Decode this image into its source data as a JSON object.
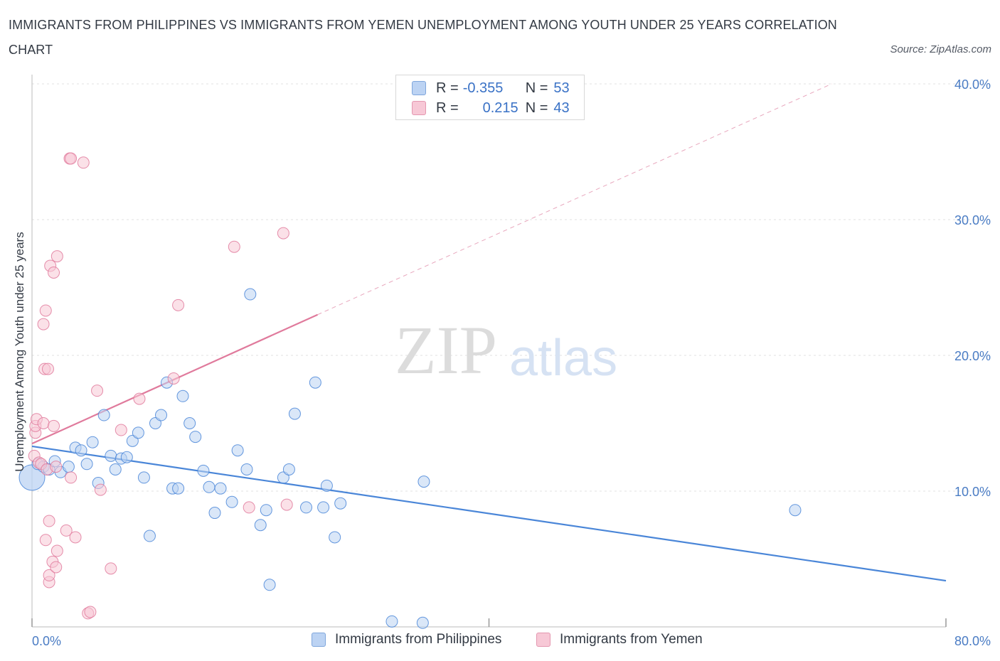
{
  "header": {
    "title": "IMMIGRANTS FROM PHILIPPINES VS IMMIGRANTS FROM YEMEN UNEMPLOYMENT AMONG YOUTH UNDER 25 YEARS CORRELATION CHART",
    "source": "Source: ZipAtlas.com",
    "watermark_zip": "ZIP",
    "watermark_atlas": "atlas"
  },
  "legend": {
    "r_label": "R =",
    "n_label": "N =",
    "series": [
      {
        "name": "Immigrants from Philippines",
        "r": "-0.355",
        "n": "53",
        "color": "#4a86d8"
      },
      {
        "name": "Immigrants from Yemen",
        "r": "0.215",
        "n": "43",
        "color": "#e07a9c"
      }
    ]
  },
  "chart_data": {
    "type": "scatter",
    "title": "IMMIGRANTS FROM PHILIPPINES VS IMMIGRANTS FROM YEMEN UNEMPLOYMENT AMONG YOUTH UNDER 25 YEARS CORRELATION CHART",
    "xlabel": "",
    "ylabel": "Unemployment Among Youth under 25 years",
    "xlim": [
      0,
      80
    ],
    "ylim": [
      0,
      40
    ],
    "x_tick_labels": [
      "0.0%",
      "80.0%"
    ],
    "y_ticks": [
      10,
      20,
      30,
      40
    ],
    "y_tick_labels": [
      "10.0%",
      "20.0%",
      "30.0%",
      "40.0%"
    ],
    "grid": true,
    "legend_position": "top-center",
    "series": [
      {
        "name": "Immigrants from Philippines",
        "color": "#4a86d8",
        "fill": "#bcd3f3",
        "points": [
          [
            0.0,
            11.0
          ],
          [
            0.5,
            12.0
          ],
          [
            1.0,
            11.8
          ],
          [
            1.5,
            11.6
          ],
          [
            2.0,
            12.2
          ],
          [
            2.5,
            11.4
          ],
          [
            3.2,
            11.8
          ],
          [
            3.8,
            13.2
          ],
          [
            4.3,
            13.0
          ],
          [
            4.8,
            12.0
          ],
          [
            5.3,
            13.6
          ],
          [
            5.8,
            10.6
          ],
          [
            6.3,
            15.6
          ],
          [
            6.9,
            12.6
          ],
          [
            7.3,
            11.6
          ],
          [
            7.8,
            12.4
          ],
          [
            8.3,
            12.5
          ],
          [
            8.8,
            13.7
          ],
          [
            9.3,
            14.3
          ],
          [
            9.8,
            11.0
          ],
          [
            10.3,
            6.7
          ],
          [
            10.8,
            15.0
          ],
          [
            11.3,
            15.6
          ],
          [
            11.8,
            18.0
          ],
          [
            12.3,
            10.2
          ],
          [
            12.8,
            10.2
          ],
          [
            13.2,
            17.0
          ],
          [
            13.8,
            15.0
          ],
          [
            14.3,
            14.0
          ],
          [
            15.0,
            11.5
          ],
          [
            15.5,
            10.3
          ],
          [
            16.0,
            8.4
          ],
          [
            16.5,
            10.2
          ],
          [
            17.5,
            9.2
          ],
          [
            18.0,
            13.0
          ],
          [
            18.8,
            11.6
          ],
          [
            19.1,
            24.5
          ],
          [
            20.0,
            7.5
          ],
          [
            20.5,
            8.6
          ],
          [
            20.8,
            3.1
          ],
          [
            22.0,
            11.0
          ],
          [
            22.5,
            11.6
          ],
          [
            23.0,
            15.7
          ],
          [
            24.0,
            8.8
          ],
          [
            24.8,
            18.0
          ],
          [
            25.5,
            8.8
          ],
          [
            25.8,
            10.4
          ],
          [
            26.5,
            6.6
          ],
          [
            27.0,
            9.1
          ],
          [
            31.5,
            0.4
          ],
          [
            34.2,
            0.3
          ],
          [
            34.3,
            10.7
          ],
          [
            66.8,
            8.6
          ]
        ],
        "trend": {
          "x0": 0,
          "y0": 13.3,
          "x1": 80,
          "y1": 3.4
        }
      },
      {
        "name": "Immigrants from Yemen",
        "color": "#e07a9c",
        "fill": "#f7c8d6",
        "points": [
          [
            0.2,
            12.6
          ],
          [
            0.3,
            14.3
          ],
          [
            0.3,
            14.8
          ],
          [
            0.4,
            15.3
          ],
          [
            0.6,
            12.1
          ],
          [
            0.8,
            12.0
          ],
          [
            1.0,
            22.3
          ],
          [
            1.0,
            15.0
          ],
          [
            1.1,
            19.0
          ],
          [
            1.2,
            23.3
          ],
          [
            1.2,
            6.4
          ],
          [
            1.3,
            11.6
          ],
          [
            1.4,
            19.0
          ],
          [
            1.5,
            3.3
          ],
          [
            1.5,
            3.8
          ],
          [
            1.5,
            7.8
          ],
          [
            1.6,
            26.6
          ],
          [
            1.8,
            4.8
          ],
          [
            1.9,
            26.1
          ],
          [
            1.9,
            14.8
          ],
          [
            2.1,
            11.8
          ],
          [
            2.1,
            4.4
          ],
          [
            2.2,
            27.3
          ],
          [
            2.2,
            5.6
          ],
          [
            3.0,
            7.1
          ],
          [
            3.3,
            34.5
          ],
          [
            3.4,
            34.5
          ],
          [
            3.4,
            11.0
          ],
          [
            3.8,
            6.6
          ],
          [
            4.5,
            34.2
          ],
          [
            4.9,
            1.0
          ],
          [
            5.1,
            1.1
          ],
          [
            5.7,
            17.4
          ],
          [
            6.0,
            10.1
          ],
          [
            6.9,
            4.3
          ],
          [
            7.8,
            14.5
          ],
          [
            9.4,
            16.8
          ],
          [
            12.8,
            23.7
          ],
          [
            12.4,
            18.3
          ],
          [
            17.7,
            28.0
          ],
          [
            19.0,
            8.8
          ],
          [
            22.0,
            29.0
          ],
          [
            22.3,
            9.0
          ]
        ],
        "trend": {
          "x0": 0,
          "y0": 13.5,
          "x1": 25,
          "y1": 23.0
        },
        "trend_extension": {
          "x0": 25,
          "y0": 23.0,
          "x1": 70,
          "y1": 40.0
        }
      }
    ]
  }
}
